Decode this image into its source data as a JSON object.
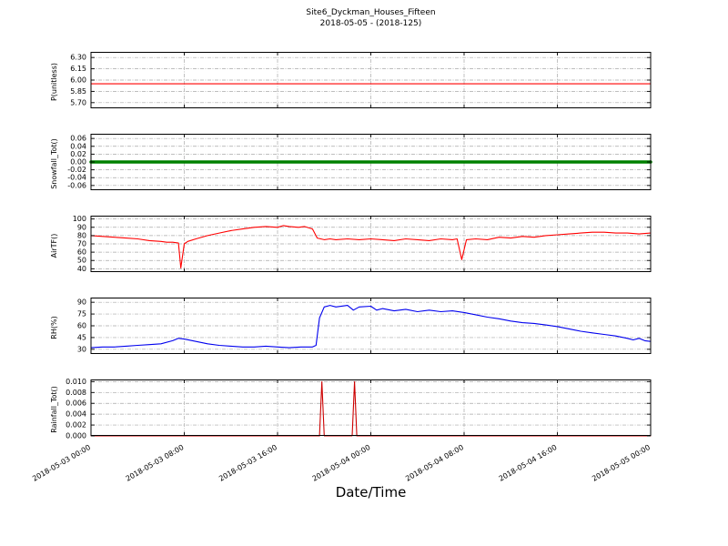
{
  "header": {
    "title": "Site6_Dyckman_Houses_Fifteen",
    "subtitle": "2018-05-05 - (2018-125)"
  },
  "xlabel": "Date/Time",
  "chart_data": {
    "type": "line",
    "grid": "dash-dot",
    "legend": "none",
    "x_axis": {
      "label": "Date/Time",
      "unit": "hours since 2018-05-03 00:00",
      "xlim": [
        0,
        48
      ],
      "tick_values": [
        0,
        8,
        16,
        24,
        32,
        40,
        48
      ],
      "tick_labels": [
        "2018-05-03 00:00",
        "2018-05-03 08:00",
        "2018-05-03 16:00",
        "2018-05-04 00:00",
        "2018-05-04 08:00",
        "2018-05-04 16:00",
        "2018-05-05 00:00"
      ]
    },
    "panels": [
      {
        "id": "p-unitless",
        "ylabel": "P(unitless)",
        "color": "#ff0000",
        "linewidth": 1.1,
        "ylim": [
          5.625,
          6.375
        ],
        "ytick_values": [
          5.7,
          5.85,
          6.0,
          6.15,
          6.3
        ],
        "ytick_labels": [
          "5.70",
          "5.85",
          "6.00",
          "6.15",
          "6.30"
        ],
        "points": [
          [
            0,
            5.95
          ],
          [
            48,
            5.95
          ]
        ]
      },
      {
        "id": "snowfall-tot",
        "ylabel": "Snowfall_Tot()",
        "color": "#008000",
        "linewidth": 3.5,
        "ylim": [
          -0.072,
          0.072
        ],
        "ytick_values": [
          -0.06,
          -0.04,
          -0.02,
          0.0,
          0.02,
          0.04,
          0.06
        ],
        "ytick_labels": [
          "-0.06",
          "-0.04",
          "-0.02",
          "0.00",
          "0.02",
          "0.04",
          "0.06"
        ],
        "points": [
          [
            0,
            0.0
          ],
          [
            48,
            0.0
          ]
        ]
      },
      {
        "id": "airtf",
        "ylabel": "AirTF()",
        "color": "#ff0000",
        "linewidth": 1.1,
        "ylim": [
          36,
          104
        ],
        "ytick_values": [
          40,
          50,
          60,
          70,
          80,
          90,
          100
        ],
        "ytick_labels": [
          "40",
          "50",
          "60",
          "70",
          "80",
          "90",
          "100"
        ],
        "points": [
          [
            0,
            80
          ],
          [
            1,
            79
          ],
          [
            2,
            78
          ],
          [
            3,
            77
          ],
          [
            4,
            76
          ],
          [
            5,
            74
          ],
          [
            6,
            73
          ],
          [
            6.5,
            72
          ],
          [
            7,
            72
          ],
          [
            7.5,
            71
          ],
          [
            7.7,
            41
          ],
          [
            8,
            70
          ],
          [
            8.3,
            73
          ],
          [
            9,
            76
          ],
          [
            10,
            80
          ],
          [
            11,
            83
          ],
          [
            12,
            86
          ],
          [
            13,
            88
          ],
          [
            14,
            90
          ],
          [
            15,
            91
          ],
          [
            16,
            90
          ],
          [
            16.5,
            92
          ],
          [
            17,
            91
          ],
          [
            17.8,
            90
          ],
          [
            18.3,
            91
          ],
          [
            19,
            88
          ],
          [
            19.4,
            77
          ],
          [
            20,
            75
          ],
          [
            20.5,
            76
          ],
          [
            21,
            75
          ],
          [
            22,
            76
          ],
          [
            23,
            75
          ],
          [
            24,
            76
          ],
          [
            25,
            75
          ],
          [
            26,
            74
          ],
          [
            27,
            76
          ],
          [
            28,
            75
          ],
          [
            29,
            74
          ],
          [
            30,
            76
          ],
          [
            31,
            75
          ],
          [
            31.4,
            76
          ],
          [
            31.8,
            51
          ],
          [
            32.2,
            75
          ],
          [
            33,
            76
          ],
          [
            34,
            75
          ],
          [
            35,
            78
          ],
          [
            36,
            77
          ],
          [
            37,
            79
          ],
          [
            38,
            78
          ],
          [
            39,
            80
          ],
          [
            40,
            81
          ],
          [
            41,
            82
          ],
          [
            42,
            83
          ],
          [
            43,
            84
          ],
          [
            44,
            84
          ],
          [
            45,
            83
          ],
          [
            46,
            83
          ],
          [
            47,
            82
          ],
          [
            48,
            83
          ]
        ]
      },
      {
        "id": "rh",
        "ylabel": "RH(%)",
        "color": "#0000ee",
        "linewidth": 1.1,
        "ylim": [
          24,
          96
        ],
        "ytick_values": [
          30,
          45,
          60,
          75,
          90
        ],
        "ytick_labels": [
          "30",
          "45",
          "60",
          "75",
          "90"
        ],
        "points": [
          [
            0,
            32
          ],
          [
            1,
            33
          ],
          [
            2,
            33
          ],
          [
            3,
            34
          ],
          [
            4,
            35
          ],
          [
            5,
            36
          ],
          [
            6,
            37
          ],
          [
            7,
            41
          ],
          [
            7.5,
            44
          ],
          [
            8,
            43
          ],
          [
            9,
            40
          ],
          [
            10,
            37
          ],
          [
            11,
            35
          ],
          [
            12,
            34
          ],
          [
            13,
            33
          ],
          [
            14,
            33
          ],
          [
            15,
            34
          ],
          [
            16,
            33
          ],
          [
            17,
            32
          ],
          [
            18,
            33
          ],
          [
            19,
            33
          ],
          [
            19.3,
            35
          ],
          [
            19.6,
            70
          ],
          [
            20,
            84
          ],
          [
            20.5,
            86
          ],
          [
            21,
            84
          ],
          [
            22,
            86
          ],
          [
            22.5,
            80
          ],
          [
            23,
            84
          ],
          [
            24,
            85
          ],
          [
            24.5,
            80
          ],
          [
            25,
            82
          ],
          [
            26,
            79
          ],
          [
            27,
            81
          ],
          [
            28,
            78
          ],
          [
            29,
            80
          ],
          [
            30,
            78
          ],
          [
            31,
            79
          ],
          [
            32,
            77
          ],
          [
            33,
            74
          ],
          [
            34,
            71
          ],
          [
            35,
            69
          ],
          [
            36,
            66
          ],
          [
            37,
            64
          ],
          [
            38,
            63
          ],
          [
            39,
            61
          ],
          [
            40,
            59
          ],
          [
            41,
            56
          ],
          [
            42,
            53
          ],
          [
            43,
            51
          ],
          [
            44,
            49
          ],
          [
            45,
            47
          ],
          [
            46,
            44
          ],
          [
            46.5,
            42
          ],
          [
            47,
            44
          ],
          [
            47.5,
            41
          ],
          [
            48,
            40
          ]
        ]
      },
      {
        "id": "rainfall-tot",
        "ylabel": "Rainfall_Tot()",
        "color": "#cc0000",
        "linewidth": 1.1,
        "ylim": [
          0,
          0.0104
        ],
        "ytick_values": [
          0.0,
          0.002,
          0.004,
          0.006,
          0.008,
          0.01
        ],
        "ytick_labels": [
          "0.000",
          "0.002",
          "0.004",
          "0.006",
          "0.008",
          "0.010"
        ],
        "points": [
          [
            0,
            0
          ],
          [
            19.6,
            0
          ],
          [
            19.8,
            0.01
          ],
          [
            20.0,
            0
          ],
          [
            22.4,
            0
          ],
          [
            22.6,
            0.01
          ],
          [
            22.8,
            0
          ],
          [
            48,
            0
          ]
        ]
      }
    ]
  }
}
